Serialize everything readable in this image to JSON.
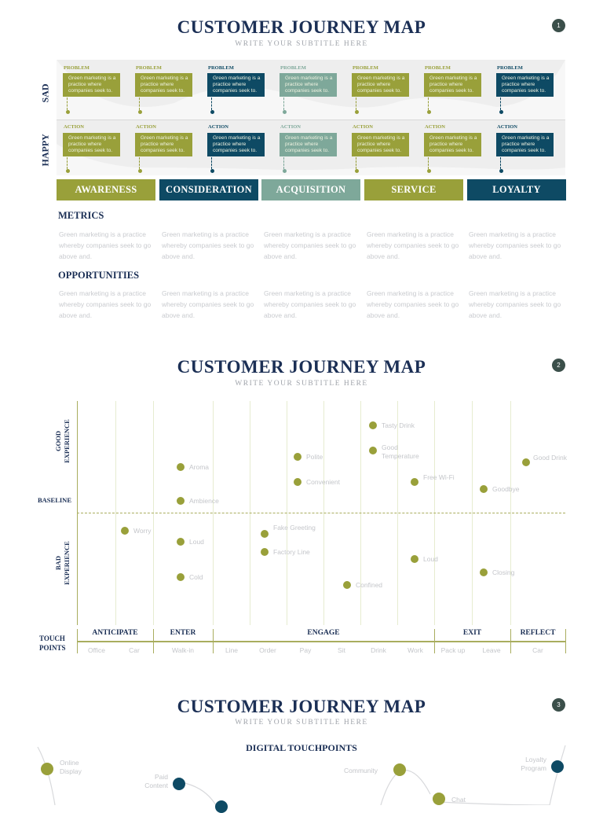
{
  "colors": {
    "navy": "#0e4a64",
    "olive": "#99a03a",
    "sage": "#7ea89a",
    "title": "#1b2f55"
  },
  "page1": {
    "title": "CUSTOMER JOURNEY MAP",
    "subtitle": "WRITE YOUR SUBTITLE HERE",
    "page_number": "1",
    "sad_label": "SAD",
    "happy_label": "HAPPY",
    "problem_label": "PROBLEM",
    "action_label": "ACTION",
    "card_text": "Green marketing is a practice where companies seek to.",
    "stages": [
      "AWARENESS",
      "CONSIDERATION",
      "ACQUISITION",
      "SERVICE",
      "LOYALTY"
    ],
    "metrics_heading": "METRICS",
    "opportunities_heading": "OPPORTUNITIES",
    "paragraph": "Green marketing is a practice whereby companies seek to go above and."
  },
  "page2": {
    "title": "CUSTOMER JOURNEY MAP",
    "subtitle": "WRITE YOUR SUBTITLE HERE",
    "page_number": "2",
    "good_label_1": "GOOD",
    "good_label_2": "EXPERIENCE",
    "bad_label_1": "BAD",
    "bad_label_2": "EXPERIENCE",
    "baseline_label": "BASELINE",
    "touch_label_1": "TOUCH",
    "touch_label_2": "POINTS",
    "phases": [
      "ANTICIPATE",
      "ENTER",
      "ENGAGE",
      "EXIT",
      "REFLECT"
    ],
    "touchpoints": [
      "Office",
      "Car",
      "Walk-in",
      "Line",
      "Order",
      "Pay",
      "Sit",
      "Drink",
      "Work",
      "Pack up",
      "Leave",
      "Car"
    ],
    "points": [
      {
        "label": "Tasty Drink"
      },
      {
        "label": "Good Temperature"
      },
      {
        "label": "Polite"
      },
      {
        "label": "Good Drink"
      },
      {
        "label": "Aroma"
      },
      {
        "label": "Convenient"
      },
      {
        "label": "Free Wi-Fi"
      },
      {
        "label": "Goodbye"
      },
      {
        "label": "Ambience"
      },
      {
        "label": "Worry"
      },
      {
        "label": "Fake Greeting"
      },
      {
        "label": "Loud"
      },
      {
        "label": "Factory Line"
      },
      {
        "label": "Loud"
      },
      {
        "label": "Closing"
      },
      {
        "label": "Cold"
      },
      {
        "label": "Confined"
      }
    ]
  },
  "page3": {
    "title": "CUSTOMER JOURNEY MAP",
    "subtitle": "WRITE YOUR SUBTITLE HERE",
    "page_number": "3",
    "heading": "DIGITAL TOUCHPOINTS",
    "touchpoints": [
      {
        "label": "Online Display"
      },
      {
        "label": "Paid Content"
      },
      {
        "label": "Community"
      },
      {
        "label": "Chat"
      },
      {
        "label": "Loyalty Program"
      }
    ]
  }
}
